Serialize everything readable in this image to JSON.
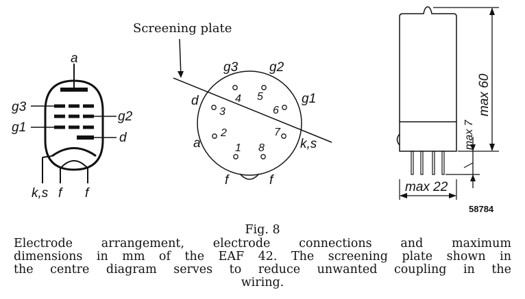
{
  "left_diagram": {
    "labels": {
      "anode": "a",
      "g3": "g3",
      "g2": "g2",
      "g1": "g1",
      "diode": "d",
      "ks": "k,s",
      "f1": "f",
      "f2": "f"
    }
  },
  "center_diagram": {
    "title": "Screening plate",
    "electrodes": {
      "g3": "g3",
      "g2": "g2",
      "g1": "g1",
      "d": "d",
      "a": "a",
      "ks": "k,s",
      "f1": "f",
      "f2": "f"
    },
    "pins": [
      "1",
      "2",
      "3",
      "4",
      "5",
      "6",
      "7",
      "8"
    ]
  },
  "right_diagram": {
    "dim_height": "max 60",
    "dim_base": "max 7",
    "dim_width": "max 22",
    "code": "58784"
  },
  "caption": {
    "fig": "Fig. 8",
    "lines": [
      "Electrode arrangement, electrode connections and maximum",
      "dimensions in mm of the EAF 42. The screening plate shown in",
      "the centre diagram serves to reduce unwanted coupling in the"
    ],
    "last_line": "wiring."
  }
}
